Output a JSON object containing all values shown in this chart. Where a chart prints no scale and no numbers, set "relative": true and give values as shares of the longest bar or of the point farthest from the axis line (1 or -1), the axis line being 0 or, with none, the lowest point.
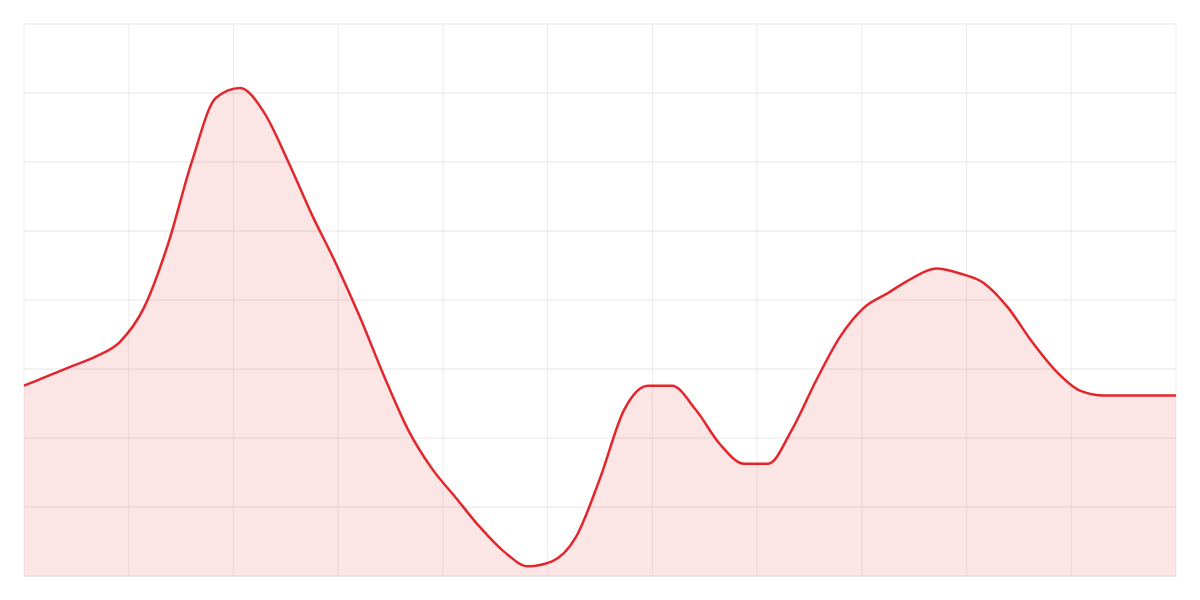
{
  "chart_data": {
    "type": "area",
    "relative": true,
    "grid": true,
    "categories": [
      null,
      null,
      null,
      null,
      null,
      null,
      null,
      null,
      null,
      null,
      null,
      null,
      null,
      null,
      null,
      null,
      null,
      null,
      null,
      null,
      null,
      null,
      null,
      null,
      null,
      null,
      null,
      null,
      null,
      null,
      null,
      null,
      null,
      null,
      null,
      null,
      null,
      null,
      null,
      null,
      null,
      null,
      null,
      null,
      null,
      null,
      null,
      null,
      null
    ],
    "series": [
      {
        "color": "#e3262b",
        "values": [
          0.39,
          0.41,
          0.43,
          0.45,
          0.48,
          0.55,
          0.68,
          0.85,
          0.98,
          1,
          0.95,
          0.85,
          0.74,
          0.64,
          0.53,
          0.41,
          0.3,
          0.22,
          0.16,
          0.1,
          0.05,
          0.02,
          0.03,
          0.08,
          0.2,
          0.34,
          0.39,
          0.39,
          0.34,
          0.27,
          0.23,
          0.23,
          0.3,
          0.4,
          0.49,
          0.55,
          0.58,
          0.61,
          0.63,
          0.62,
          0.6,
          0.55,
          0.48,
          0.42,
          0.38,
          0.37,
          0.37,
          0.37,
          0.37
        ]
      }
    ]
  }
}
